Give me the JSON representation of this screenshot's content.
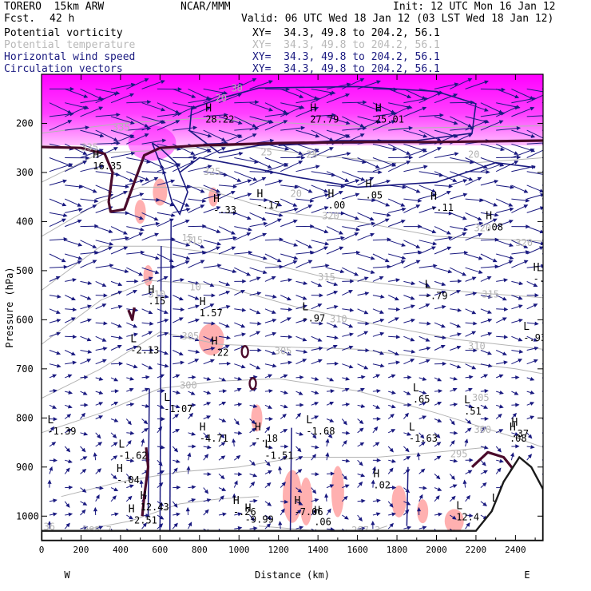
{
  "header": {
    "model": "TORERO  15km ARW",
    "org": "NCAR/MMM",
    "init": "Init: 12 UTC Mon 16 Jan 12",
    "fcst_label": "Fcst.",
    "fcst_value": "42 h",
    "valid": "Valid: 06 UTC Wed 18 Jan 12 (03 LST Wed 18 Jan 12)",
    "rows": [
      {
        "name": "Potential vorticity",
        "xy": "XY=  34.3, 49.8 to 204.2, 56.1",
        "color": "#000000"
      },
      {
        "name": "Potential temperature",
        "xy": "XY=  34.3, 49.8 to 204.2, 56.1",
        "color": "#b8b8b8"
      },
      {
        "name": "Horizontal wind speed",
        "xy": "XY=  34.3, 49.8 to 204.2, 56.1",
        "color": "#1a1a80"
      },
      {
        "name": "Circulation vectors",
        "xy": "XY=  34.3, 49.8 to 204.2, 56.1",
        "color": "#1a1a80"
      }
    ]
  },
  "chart_data": {
    "type": "cross-section",
    "xlabel": "Distance (km)",
    "ylabel": "Pressure (hPa)",
    "xlim": [
      0,
      2540
    ],
    "ylim": [
      1050,
      100
    ],
    "xticks": [
      0,
      200,
      400,
      600,
      800,
      1000,
      1200,
      1400,
      1600,
      1800,
      2000,
      2200,
      2400
    ],
    "yticks": [
      200,
      300,
      400,
      500,
      600,
      700,
      800,
      900,
      1000
    ],
    "west_label": "W",
    "east_label": "E",
    "colors": {
      "pv_shade": "#ff00ff",
      "pv_neg": "#ffb0b0",
      "wind": "#1a1a80",
      "theta": "#b4b4b4",
      "terrain": "#1a1a1a"
    },
    "theta_contours": [
      {
        "value": "285.7",
        "points": [
          [
            150,
            1033
          ],
          [
            450,
            1010
          ],
          [
            700,
            975
          ],
          [
            900,
            965
          ],
          [
            1100,
            960
          ]
        ]
      },
      {
        "value": "287.3",
        "points": [
          [
            1100,
            1020
          ],
          [
            1400,
            1030
          ],
          [
            1600,
            1040
          ],
          [
            1750,
            1020
          ]
        ]
      },
      {
        "value": "295",
        "points": [
          [
            100,
            960
          ],
          [
            400,
            930
          ],
          [
            700,
            910
          ],
          [
            1000,
            900
          ],
          [
            1300,
            880
          ],
          [
            1700,
            880
          ],
          [
            2000,
            870
          ],
          [
            2250,
            860
          ]
        ]
      },
      {
        "value": "300",
        "points": [
          [
            0,
            830
          ],
          [
            300,
            790
          ],
          [
            600,
            740
          ],
          [
            900,
            725
          ],
          [
            1200,
            720
          ],
          [
            1600,
            745
          ],
          [
            2000,
            790
          ],
          [
            2400,
            840
          ],
          [
            2540,
            860
          ]
        ]
      },
      {
        "value": "305",
        "points": [
          [
            0,
            760
          ],
          [
            300,
            700
          ],
          [
            600,
            625
          ],
          [
            900,
            650
          ],
          [
            1200,
            655
          ],
          [
            1600,
            660
          ],
          [
            2000,
            680
          ],
          [
            2400,
            700
          ],
          [
            2540,
            710
          ]
        ]
      },
      {
        "value": "310",
        "points": [
          [
            0,
            650
          ],
          [
            300,
            560
          ],
          [
            550,
            520
          ],
          [
            900,
            530
          ],
          [
            1300,
            575
          ],
          [
            1700,
            610
          ],
          [
            2100,
            640
          ],
          [
            2540,
            660
          ]
        ]
      },
      {
        "value": "315",
        "points": [
          [
            0,
            540
          ],
          [
            300,
            450
          ],
          [
            600,
            450
          ],
          [
            1000,
            470
          ],
          [
            1400,
            510
          ],
          [
            1800,
            530
          ],
          [
            2200,
            545
          ],
          [
            2540,
            555
          ]
        ]
      },
      {
        "value": "320",
        "points": [
          [
            0,
            430
          ],
          [
            300,
            360
          ],
          [
            500,
            330
          ],
          [
            800,
            330
          ],
          [
            1200,
            380
          ],
          [
            1600,
            400
          ],
          [
            2000,
            430
          ],
          [
            2540,
            440
          ]
        ]
      },
      {
        "value": "325",
        "points": [
          [
            0,
            320
          ],
          [
            300,
            260
          ],
          [
            600,
            255
          ],
          [
            1000,
            245
          ],
          [
            1400,
            265
          ],
          [
            1800,
            280
          ],
          [
            2200,
            280
          ],
          [
            2540,
            270
          ]
        ]
      },
      {
        "value": "335",
        "points": [
          [
            0,
            220
          ],
          [
            400,
            200
          ],
          [
            800,
            190
          ],
          [
            1300,
            200
          ],
          [
            1800,
            210
          ],
          [
            2540,
            205
          ]
        ]
      }
    ],
    "wind_contours": [
      {
        "value": "20",
        "points": [
          [
            900,
            150
          ],
          [
            1100,
            128
          ],
          [
            1600,
            125
          ],
          [
            2000,
            135
          ],
          [
            2200,
            160
          ],
          [
            2180,
            220
          ],
          [
            1900,
            235
          ],
          [
            1500,
            235
          ],
          [
            1100,
            245
          ],
          [
            900,
            260
          ],
          [
            750,
            215
          ],
          [
            760,
            170
          ],
          [
            900,
            150
          ]
        ]
      },
      {
        "value": "20",
        "points": [
          [
            700,
            300
          ],
          [
            800,
            270
          ],
          [
            1000,
            285
          ],
          [
            1300,
            310
          ],
          [
            1600,
            330
          ],
          [
            2000,
            320
          ],
          [
            2300,
            280
          ],
          [
            2500,
            290
          ]
        ]
      },
      {
        "value": "20",
        "points": [
          [
            560,
            240
          ],
          [
            620,
            300
          ],
          [
            660,
            360
          ],
          [
            700,
            385
          ],
          [
            740,
            340
          ],
          [
            680,
            280
          ],
          [
            600,
            250
          ],
          [
            560,
            240
          ]
        ]
      },
      {
        "value": "25",
        "points": [
          [
            1200,
            245
          ],
          [
            1400,
            240
          ],
          [
            1600,
            240
          ]
        ]
      }
    ],
    "pv_lines": [
      {
        "points": [
          [
            0,
            248
          ],
          [
            200,
            250
          ],
          [
            320,
            262
          ],
          [
            360,
            300
          ],
          [
            340,
            360
          ],
          [
            350,
            380
          ],
          [
            420,
            375
          ],
          [
            470,
            320
          ],
          [
            520,
            265
          ],
          [
            600,
            250
          ],
          [
            800,
            245
          ],
          [
            1200,
            240
          ],
          [
            1600,
            238
          ],
          [
            2000,
            238
          ],
          [
            2540,
            235
          ]
        ]
      },
      {
        "points": [
          [
            440,
            580
          ],
          [
            460,
            600
          ],
          [
            470,
            575
          ]
        ]
      },
      {
        "points": [
          [
            530,
            860
          ],
          [
            540,
            900
          ],
          [
            520,
            960
          ],
          [
            510,
            1000
          ]
        ]
      },
      {
        "points": [
          [
            2180,
            900
          ],
          [
            2260,
            870
          ],
          [
            2340,
            880
          ],
          [
            2420,
            920
          ],
          [
            2500,
            960
          ],
          [
            2540,
            975
          ]
        ]
      }
    ],
    "pv_rings": [
      [
        1030,
        665
      ],
      [
        1070,
        730
      ]
    ],
    "neg_pv_blobs": [
      [
        600,
        340,
        18,
        34
      ],
      [
        500,
        380,
        14,
        30
      ],
      [
        870,
        350,
        12,
        24
      ],
      [
        540,
        510,
        12,
        26
      ],
      [
        860,
        640,
        32,
        40
      ],
      [
        1090,
        800,
        14,
        34
      ],
      [
        1270,
        960,
        24,
        66
      ],
      [
        1340,
        970,
        16,
        60
      ],
      [
        1500,
        950,
        16,
        64
      ],
      [
        1810,
        970,
        18,
        40
      ],
      [
        1930,
        990,
        14,
        30
      ],
      [
        2090,
        1010,
        24,
        30
      ]
    ],
    "max_min_labels": [
      {
        "kind": "H",
        "value": "16.35",
        "x": 260,
        "y": 290
      },
      {
        "kind": "H",
        "value": "28.22",
        "x": 830,
        "y": 195
      },
      {
        "kind": "H",
        "value": "27.79",
        "x": 1360,
        "y": 195
      },
      {
        "kind": "H",
        "value": "25.01",
        "x": 1690,
        "y": 195
      },
      {
        "kind": "H",
        "value": "-.33",
        "x": 870,
        "y": 380
      },
      {
        "kind": "H",
        "value": "-.17",
        "x": 1090,
        "y": 370
      },
      {
        "kind": "H",
        "value": ".00",
        "x": 1450,
        "y": 370
      },
      {
        "kind": "H",
        "value": ".05",
        "x": 1640,
        "y": 350
      },
      {
        "kind": "H",
        "value": "-.11",
        "x": 1970,
        "y": 375
      },
      {
        "kind": "H",
        "value": ".08",
        "x": 2250,
        "y": 415
      },
      {
        "kind": "H",
        "value": "-.0",
        "x": 2490,
        "y": 520
      },
      {
        "kind": "H",
        "value": ".15",
        "x": 540,
        "y": 565
      },
      {
        "kind": "H",
        "value": "1.57",
        "x": 800,
        "y": 590
      },
      {
        "kind": "L",
        "value": "-.97",
        "x": 1320,
        "y": 600
      },
      {
        "kind": "L",
        "value": "-.79",
        "x": 1940,
        "y": 555
      },
      {
        "kind": "L",
        "value": "-.93",
        "x": 2440,
        "y": 640
      },
      {
        "kind": "L",
        "value": "-2.13",
        "x": 450,
        "y": 665
      },
      {
        "kind": "H",
        "value": ".22",
        "x": 860,
        "y": 670
      },
      {
        "kind": "L",
        "value": "-1.07",
        "x": 620,
        "y": 785
      },
      {
        "kind": "L",
        "value": ".65",
        "x": 1880,
        "y": 765
      },
      {
        "kind": "L",
        "value": ".51",
        "x": 2140,
        "y": 790
      },
      {
        "kind": "L",
        "value": "-1.39",
        "x": 30,
        "y": 830
      },
      {
        "kind": "H",
        "value": "-4.71",
        "x": 800,
        "y": 845
      },
      {
        "kind": "H",
        "value": "-.18",
        "x": 1080,
        "y": 845
      },
      {
        "kind": "L",
        "value": "-1.68",
        "x": 1340,
        "y": 830
      },
      {
        "kind": "L",
        "value": "-1.63",
        "x": 1860,
        "y": 845
      },
      {
        "kind": "H",
        "value": ".37",
        "x": 2380,
        "y": 835
      },
      {
        "kind": "H",
        "value": ".08",
        "x": 2370,
        "y": 845
      },
      {
        "kind": "L",
        "value": "-1.62",
        "x": 390,
        "y": 880
      },
      {
        "kind": "L",
        "value": "-1.51",
        "x": 1130,
        "y": 880
      },
      {
        "kind": "H",
        "value": "-.04",
        "x": 380,
        "y": 930
      },
      {
        "kind": "H",
        "value": ".02",
        "x": 1680,
        "y": 940
      },
      {
        "kind": "H",
        "value": "12.43",
        "x": 500,
        "y": 985
      },
      {
        "kind": "H",
        "value": "-.26",
        "x": 970,
        "y": 995
      },
      {
        "kind": "H",
        "value": "-9.99",
        "x": 1030,
        "y": 1010
      },
      {
        "kind": "H",
        "value": "-7.06",
        "x": 1280,
        "y": 995
      },
      {
        "kind": "H",
        "value": ".06",
        "x": 1380,
        "y": 1015
      },
      {
        "kind": "L",
        "value": "12.4",
        "x": 2100,
        "y": 1005
      },
      {
        "kind": "L",
        "value": ".5",
        "x": 2280,
        "y": 990
      },
      {
        "kind": "H",
        "value": "-.3",
        "x": 2340,
        "y": 985
      },
      {
        "kind": "H",
        "value": "-2.51",
        "x": 440,
        "y": 1012
      }
    ],
    "theta_text": [
      {
        "text": "335",
        "x": 360,
        "y": 215
      },
      {
        "text": "335",
        "x": 200,
        "y": 255
      },
      {
        "text": "325",
        "x": 820,
        "y": 305
      },
      {
        "text": "320",
        "x": 1420,
        "y": 395
      },
      {
        "text": "320",
        "x": 2190,
        "y": 420
      },
      {
        "text": "320",
        "x": 2400,
        "y": 450
      },
      {
        "text": "315",
        "x": 730,
        "y": 445
      },
      {
        "text": "315",
        "x": 1400,
        "y": 520
      },
      {
        "text": "315",
        "x": 2230,
        "y": 555
      },
      {
        "text": "310",
        "x": 540,
        "y": 555
      },
      {
        "text": "310",
        "x": 1460,
        "y": 605
      },
      {
        "text": "310",
        "x": 2160,
        "y": 660
      },
      {
        "text": "305",
        "x": 710,
        "y": 640
      },
      {
        "text": "305",
        "x": 1180,
        "y": 670
      },
      {
        "text": "305",
        "x": 2180,
        "y": 765
      },
      {
        "text": "300",
        "x": 700,
        "y": 740
      },
      {
        "text": "300",
        "x": 2190,
        "y": 830
      },
      {
        "text": "295",
        "x": 2070,
        "y": 880
      },
      {
        "text": "285.7",
        "x": 210,
        "y": 1035
      },
      {
        "text": "287.3",
        "x": 1570,
        "y": 1035
      },
      {
        "text": "30",
        "x": 960,
        "y": 135
      },
      {
        "text": "20",
        "x": 880,
        "y": 155
      },
      {
        "text": "25",
        "x": 1110,
        "y": 265
      },
      {
        "text": "25",
        "x": 1340,
        "y": 270
      },
      {
        "text": "20",
        "x": 1260,
        "y": 350
      },
      {
        "text": "20",
        "x": 2160,
        "y": 270
      },
      {
        "text": "15",
        "x": 710,
        "y": 440
      },
      {
        "text": "10",
        "x": 750,
        "y": 540
      },
      {
        "text": "36",
        "x": 10,
        "y": 1028
      }
    ]
  }
}
